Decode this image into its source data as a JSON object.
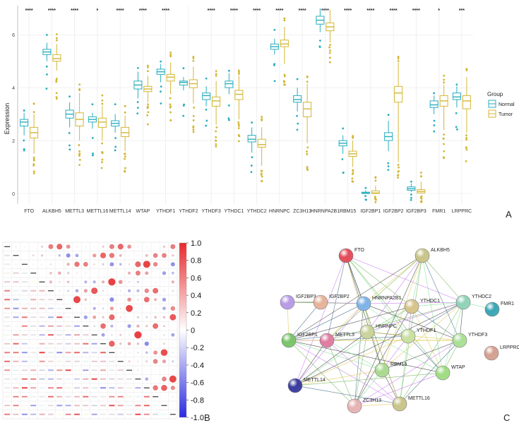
{
  "colors": {
    "normal": "#29aebf",
    "tumor": "#d4b634",
    "corr_pos": "#e8292b",
    "corr_neg": "#2a2ae0",
    "grid": "#ececec"
  },
  "chart_data": [
    {
      "type": "box",
      "panel": "A",
      "ylabel": "Expression",
      "ylim": [
        -0.4,
        7.1
      ],
      "yticks": [
        0,
        2,
        4,
        6
      ],
      "legend": {
        "title": "Group",
        "entries": [
          "Normal",
          "Tumor"
        ],
        "position": "right"
      },
      "categories": [
        "FTO",
        "ALKBH5",
        "METTL3",
        "METTL16",
        "METTL14",
        "WTAP",
        "YTHDF1",
        "YTHDF2",
        "YTHDF3",
        "YTHDC1",
        "YTHDC2",
        "HNRNPC",
        "ZC3H13",
        "HNRNPA2B1",
        "RBM15",
        "IGF2BP1",
        "IGF2BP2",
        "IGF2BP3",
        "FMR1",
        "LRPPRC"
      ],
      "significance": [
        "****",
        "****",
        "****",
        "*",
        "****",
        "****",
        "****",
        "",
        "****",
        "****",
        "****",
        "****",
        "****",
        "****",
        "****",
        "****",
        "****",
        "****",
        "*",
        "***"
      ],
      "series": [
        {
          "name": "Normal",
          "boxes": [
            [
              2.2,
              2.55,
              2.7,
              2.8,
              3.05
            ],
            [
              5.0,
              5.25,
              5.35,
              5.45,
              5.7
            ],
            [
              2.5,
              2.85,
              3.0,
              3.15,
              3.45
            ],
            [
              2.45,
              2.7,
              2.8,
              2.9,
              3.05
            ],
            [
              2.3,
              2.55,
              2.65,
              2.75,
              3.0
            ],
            [
              3.6,
              3.95,
              4.1,
              4.25,
              4.6
            ],
            [
              4.2,
              4.5,
              4.6,
              4.7,
              4.9
            ],
            [
              3.9,
              4.1,
              4.2,
              4.25,
              4.4
            ],
            [
              3.3,
              3.55,
              3.7,
              3.8,
              4.05
            ],
            [
              3.75,
              4.0,
              4.15,
              4.25,
              4.55
            ],
            [
              1.55,
              1.95,
              2.05,
              2.2,
              2.5
            ],
            [
              5.25,
              5.45,
              5.55,
              5.65,
              5.85
            ],
            [
              3.1,
              3.45,
              3.55,
              3.7,
              4.0
            ],
            [
              6.1,
              6.4,
              6.55,
              6.7,
              7.0
            ],
            [
              1.5,
              1.8,
              1.9,
              2.0,
              2.2
            ],
            [
              0.0,
              0.0,
              0.02,
              0.05,
              0.12
            ],
            [
              1.6,
              2.0,
              2.15,
              2.3,
              2.75
            ],
            [
              0.05,
              0.12,
              0.18,
              0.25,
              0.38
            ],
            [
              3.0,
              3.25,
              3.35,
              3.5,
              3.7
            ],
            [
              3.25,
              3.55,
              3.65,
              3.8,
              4.05
            ]
          ]
        },
        {
          "name": "Tumor",
          "boxes": [
            [
              1.5,
              2.1,
              2.3,
              2.5,
              3.0
            ],
            [
              4.65,
              5.0,
              5.1,
              5.25,
              5.65
            ],
            [
              2.0,
              2.55,
              2.8,
              3.05,
              3.8
            ],
            [
              2.0,
              2.5,
              2.7,
              2.85,
              3.3
            ],
            [
              1.6,
              2.15,
              2.3,
              2.5,
              2.95
            ],
            [
              3.45,
              3.85,
              3.95,
              4.05,
              4.45
            ],
            [
              3.75,
              4.25,
              4.4,
              4.5,
              4.95
            ],
            [
              3.4,
              4.0,
              4.15,
              4.3,
              4.8
            ],
            [
              2.6,
              3.3,
              3.5,
              3.65,
              4.25
            ],
            [
              2.8,
              3.55,
              3.75,
              3.9,
              4.45
            ],
            [
              1.05,
              1.75,
              1.85,
              2.05,
              2.5
            ],
            [
              4.9,
              5.55,
              5.65,
              5.8,
              6.3
            ],
            [
              1.9,
              2.9,
              3.2,
              3.45,
              4.15
            ],
            [
              5.7,
              6.15,
              6.3,
              6.45,
              6.95
            ],
            [
              1.0,
              1.4,
              1.5,
              1.6,
              2.0
            ],
            [
              0.0,
              0.0,
              0.02,
              0.1,
              0.3
            ],
            [
              1.2,
              3.45,
              3.8,
              4.05,
              4.95
            ],
            [
              0.0,
              0.02,
              0.08,
              0.15,
              0.45
            ],
            [
              2.4,
              3.3,
              3.5,
              3.7,
              4.1
            ],
            [
              2.3,
              3.2,
              3.5,
              3.7,
              4.4
            ]
          ]
        }
      ]
    },
    {
      "type": "heatmap",
      "panel": "B",
      "colorbar": {
        "ticks": [
          "1.0",
          "0.8",
          "0.6",
          "0.4",
          "0.2",
          "0",
          "-0.2",
          "-0.4",
          "-0.6",
          "-0.8",
          "-1.0"
        ]
      }
    }
  ],
  "network": {
    "panel": "C",
    "nodes": [
      "FTO",
      "ALKBH5",
      "IGF2BP3",
      "IGF2BP2",
      "HNRNPA2B1",
      "YTHDC1",
      "YTHDC2",
      "FMR1",
      "IGF2BP1",
      "METTL3",
      "HNRNPC",
      "YTHDF1",
      "YTHDF3",
      "LRPPRC",
      "RBM15",
      "WTAP",
      "METTL14",
      "ZC3H13",
      "METTL16"
    ]
  },
  "panel_labels": {
    "a": "A",
    "b": "B",
    "c": "C"
  }
}
